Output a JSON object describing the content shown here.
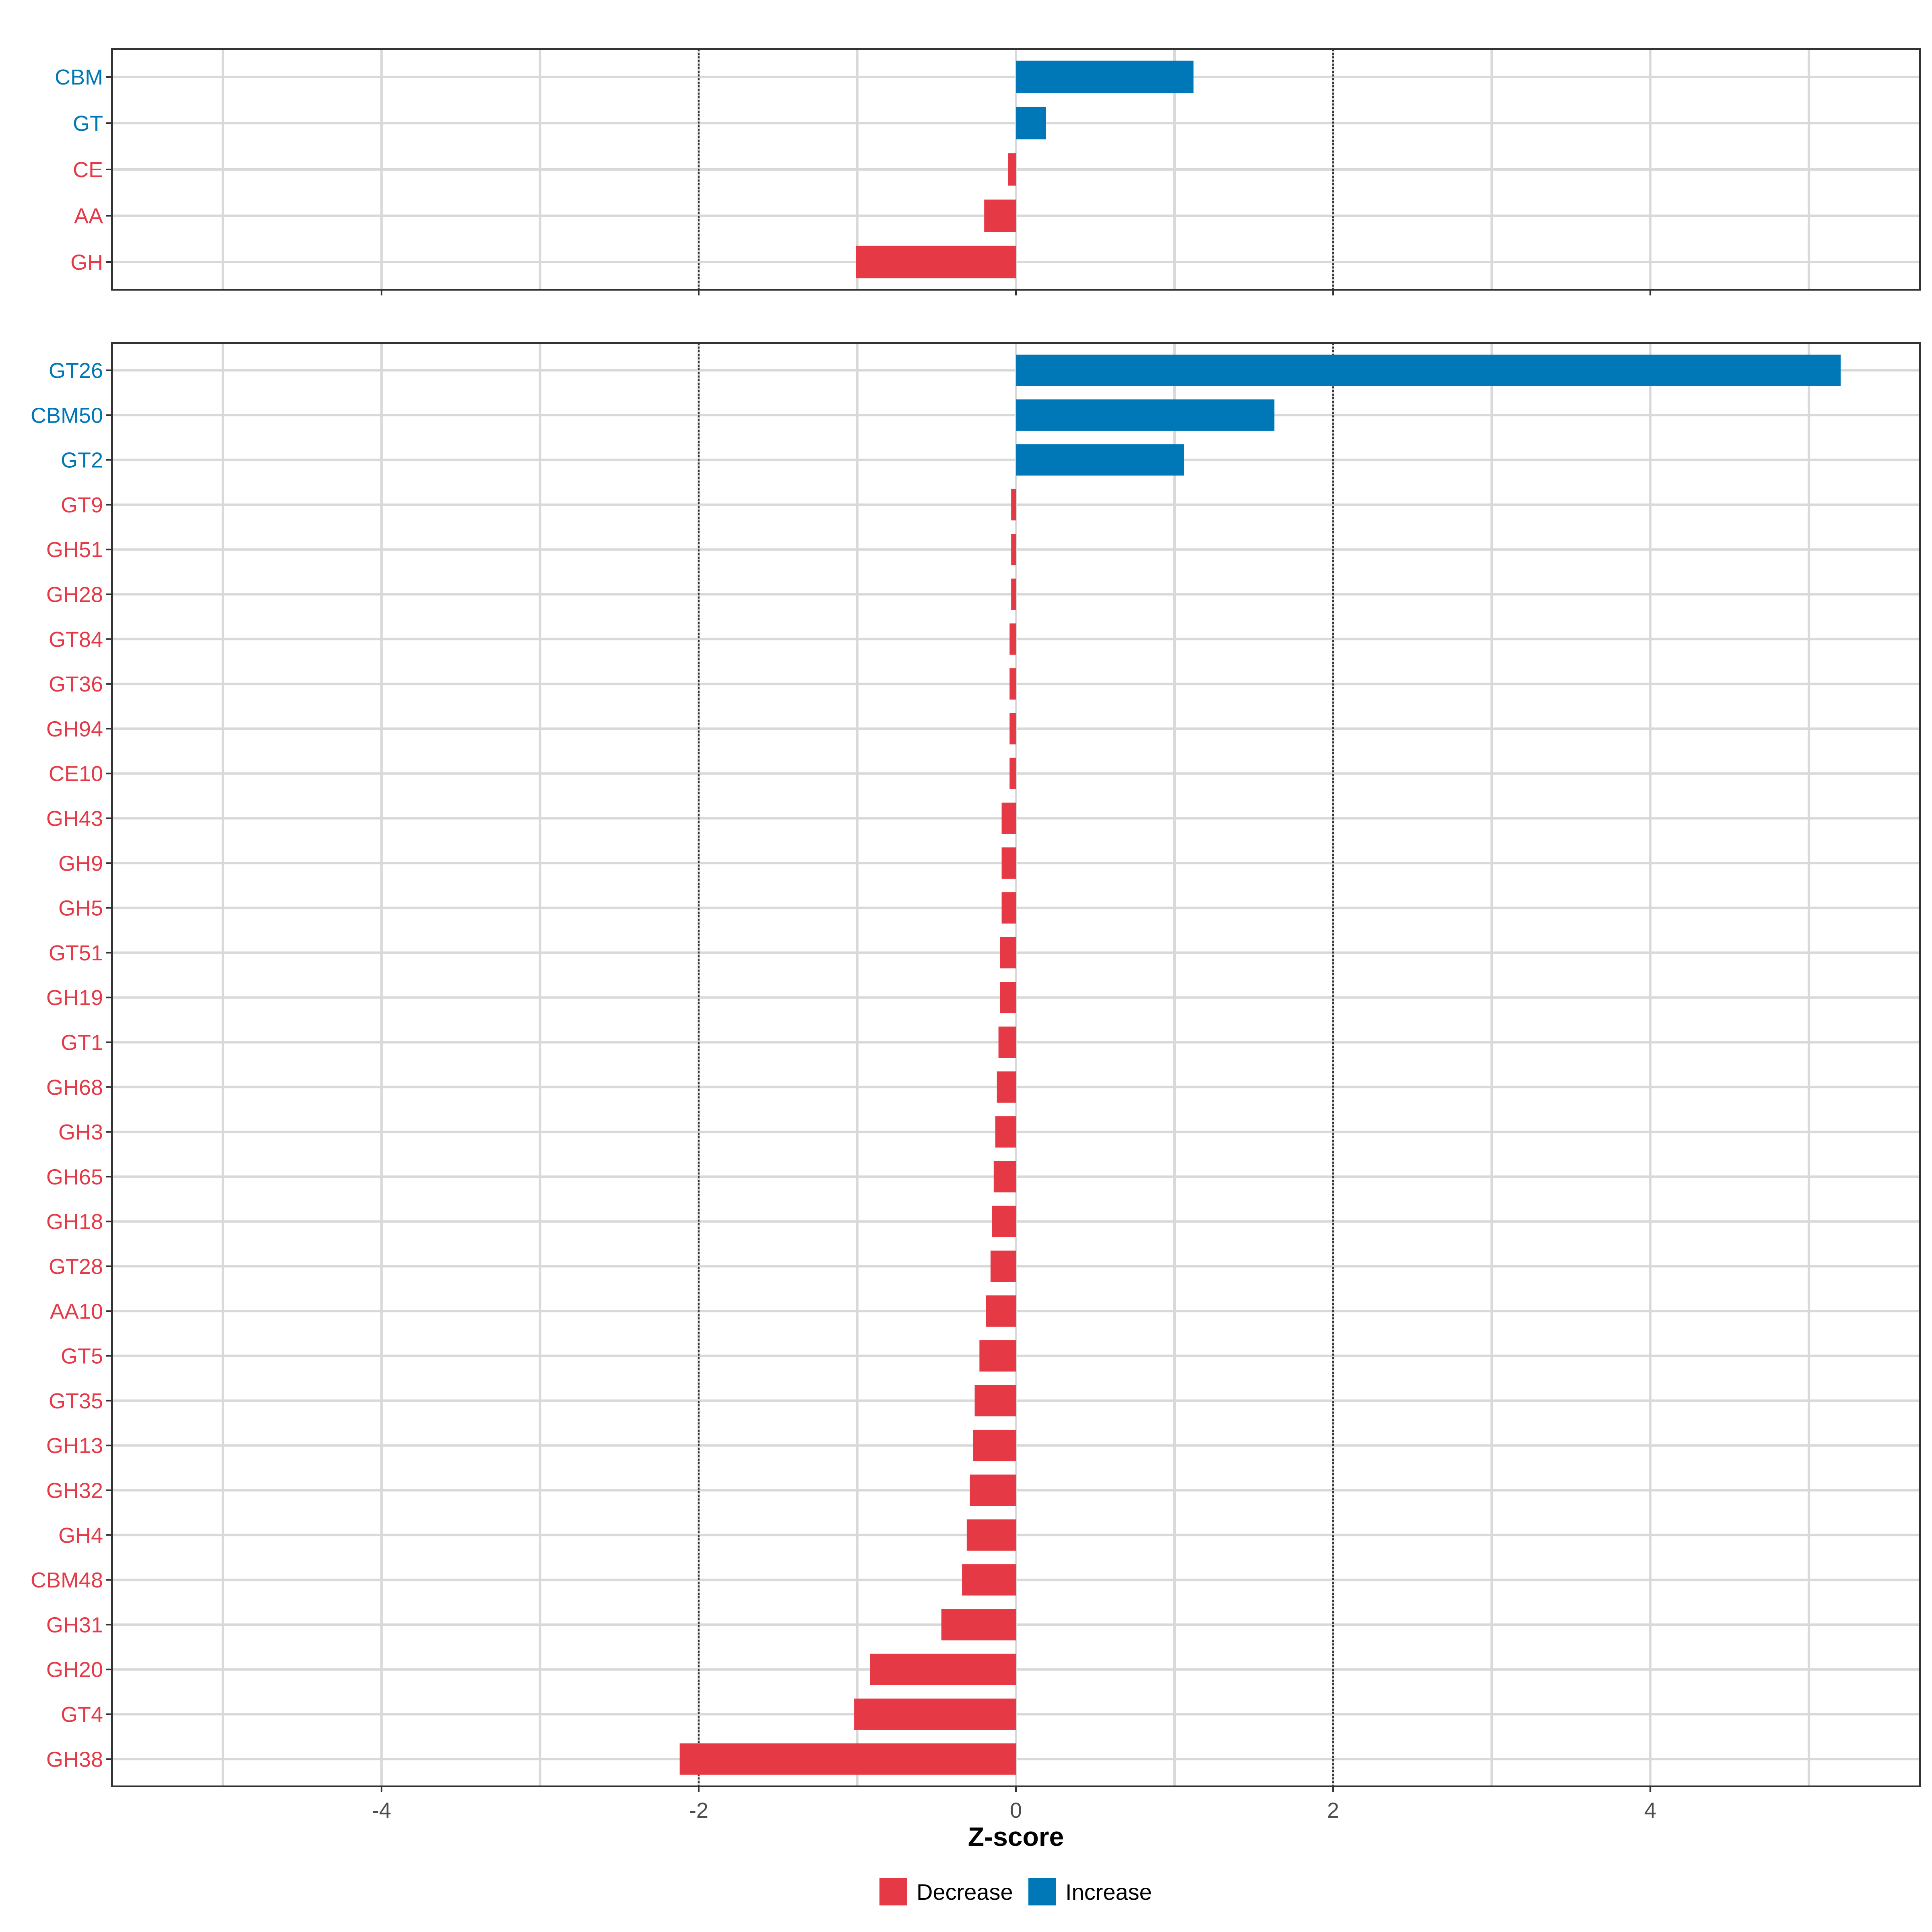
{
  "chart_data": {
    "type": "bar",
    "orientation": "horizontal",
    "xlabel": "Z-score",
    "xlim": [
      -5.7,
      5.7
    ],
    "xticks": [
      -4,
      -2,
      0,
      2,
      4
    ],
    "reference_lines": [
      -2,
      2
    ],
    "colors": {
      "Decrease": "#e63946",
      "Increase": "#0077b6"
    },
    "legend": {
      "position": "bottom",
      "entries": [
        "Decrease",
        "Increase"
      ]
    },
    "panels": [
      {
        "name": "classes",
        "categories": [
          "CBM",
          "GT",
          "CE",
          "AA",
          "GH"
        ],
        "values": [
          1.12,
          0.19,
          -0.05,
          -0.2,
          -1.01
        ],
        "direction": [
          "Increase",
          "Increase",
          "Decrease",
          "Decrease",
          "Decrease"
        ]
      },
      {
        "name": "families",
        "categories": [
          "GT26",
          "CBM50",
          "GT2",
          "GT9",
          "GH51",
          "GH28",
          "GT84",
          "GT36",
          "GH94",
          "CE10",
          "GH43",
          "GH9",
          "GH5",
          "GT51",
          "GH19",
          "GT1",
          "GH68",
          "GH3",
          "GH65",
          "GH18",
          "GT28",
          "AA10",
          "GT5",
          "GT35",
          "GH13",
          "GH32",
          "GH4",
          "CBM48",
          "GH31",
          "GH20",
          "GT4",
          "GH38"
        ],
        "values": [
          5.2,
          1.63,
          1.06,
          -0.03,
          -0.03,
          -0.03,
          -0.04,
          -0.04,
          -0.04,
          -0.04,
          -0.09,
          -0.09,
          -0.09,
          -0.1,
          -0.1,
          -0.11,
          -0.12,
          -0.13,
          -0.14,
          -0.15,
          -0.16,
          -0.19,
          -0.23,
          -0.26,
          -0.27,
          -0.29,
          -0.31,
          -0.34,
          -0.47,
          -0.92,
          -1.02,
          -2.12
        ],
        "direction": [
          "Increase",
          "Increase",
          "Increase",
          "Decrease",
          "Decrease",
          "Decrease",
          "Decrease",
          "Decrease",
          "Decrease",
          "Decrease",
          "Decrease",
          "Decrease",
          "Decrease",
          "Decrease",
          "Decrease",
          "Decrease",
          "Decrease",
          "Decrease",
          "Decrease",
          "Decrease",
          "Decrease",
          "Decrease",
          "Decrease",
          "Decrease",
          "Decrease",
          "Decrease",
          "Decrease",
          "Decrease",
          "Decrease",
          "Decrease",
          "Decrease",
          "Decrease"
        ]
      }
    ]
  }
}
